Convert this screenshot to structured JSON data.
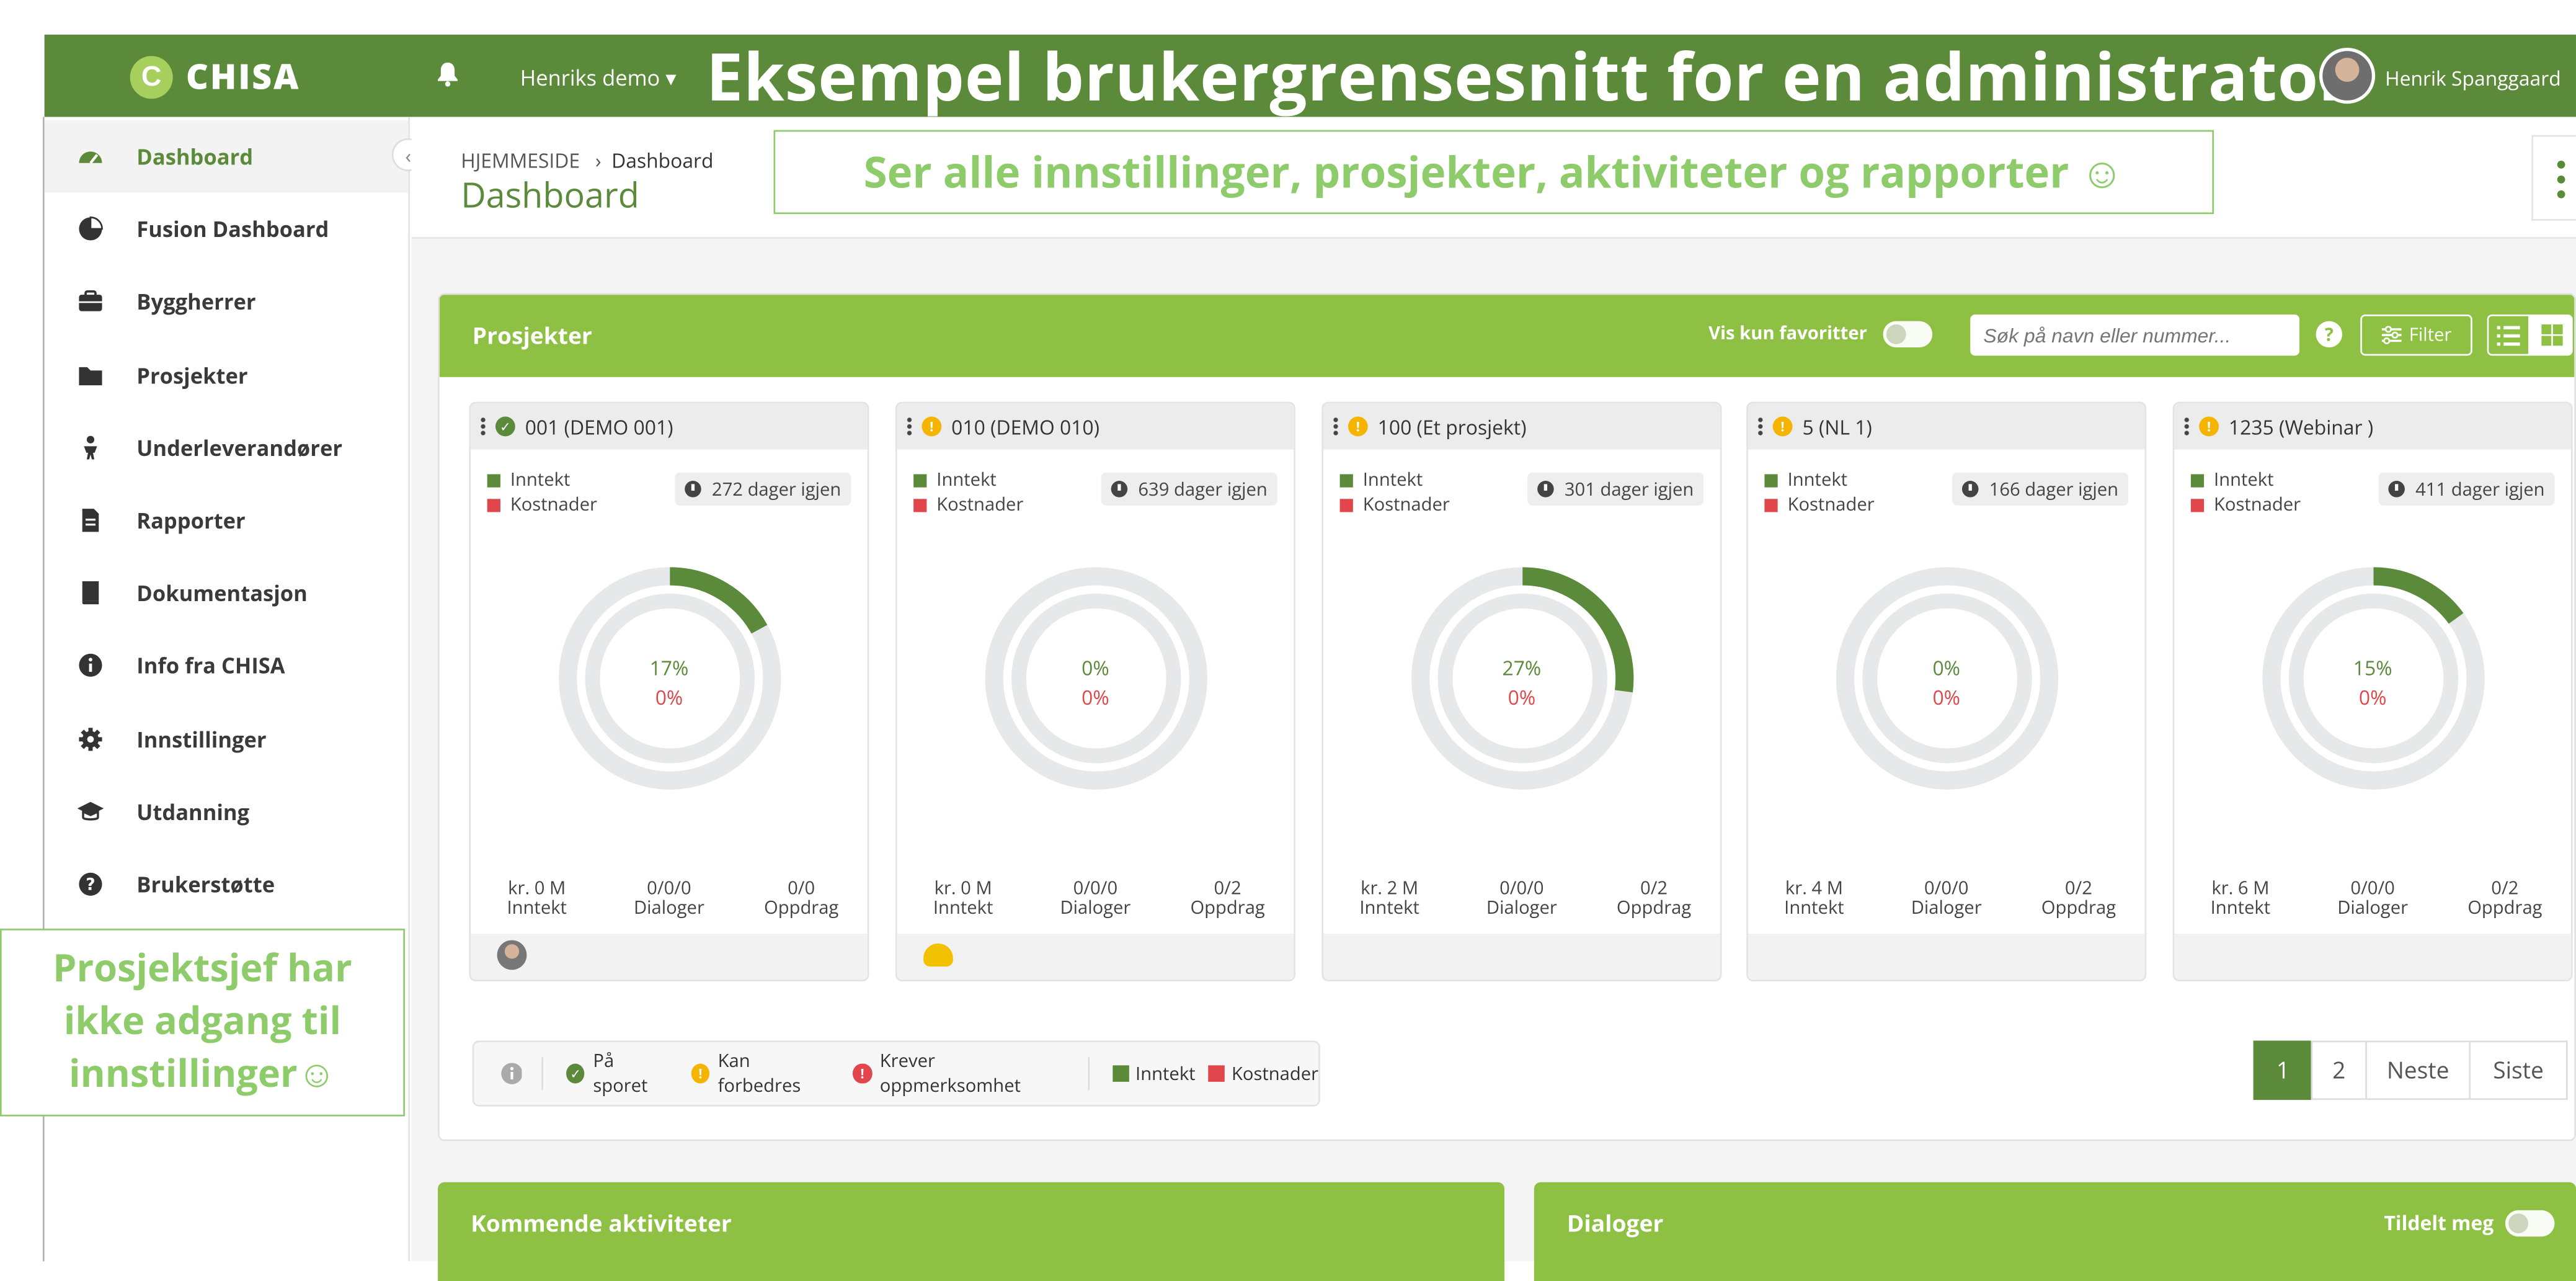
{
  "topbar": {
    "logo_letter": "C",
    "logo_text": "CHISA",
    "user_menu": "Henriks demo",
    "headline": "Eksempel brukergrensesnitt for en administrator",
    "username": "Henrik Spanggaard"
  },
  "sidebar": {
    "items": [
      {
        "label": "Dashboard",
        "icon": "dashboard-icon"
      },
      {
        "label": "Fusion Dashboard",
        "icon": "pie-chart-icon"
      },
      {
        "label": "Byggherrer",
        "icon": "briefcase-icon"
      },
      {
        "label": "Prosjekter",
        "icon": "folder-icon"
      },
      {
        "label": "Underleverandører",
        "icon": "worker-icon"
      },
      {
        "label": "Rapporter",
        "icon": "report-icon"
      },
      {
        "label": "Dokumentasjon",
        "icon": "book-icon"
      },
      {
        "label": "Info fra CHISA",
        "icon": "info-icon"
      },
      {
        "label": "Innstillinger",
        "icon": "gear-icon"
      },
      {
        "label": "Utdanning",
        "icon": "graduation-cap-icon"
      },
      {
        "label": "Brukerstøtte",
        "icon": "help-icon"
      }
    ],
    "note_line1": "Prosjektsjef har",
    "note_line2": "ikke adgang til",
    "note_line3": "innstillinger☺"
  },
  "page": {
    "breadcrumb_home": "HJEMMESIDE",
    "breadcrumb_current": "Dashboard",
    "title": "Dashboard",
    "banner": "Ser alle innstillinger, prosjekter, aktiviteter og rapporter ☺"
  },
  "projects": {
    "title": "Prosjekter",
    "favorites_label": "Vis kun favoritter",
    "search_placeholder": "Søk på navn eller nummer...",
    "help_label": "?",
    "filter_label": "Filter",
    "legend_income": "Inntekt",
    "legend_costs": "Kostnader",
    "cards": [
      {
        "title": "001 (DEMO 001)",
        "status": "on-track",
        "days": "272 dager igjen",
        "income_pct": "17%",
        "cost_pct": "0%",
        "income_fraction": 0.17,
        "amount": "kr. 0 M",
        "amount_label": "Inntekt",
        "dialogs": "0/0/0",
        "dialogs_label": "Dialoger",
        "tasks": "0/0",
        "tasks_label": "Oppdrag",
        "foot": "avatar"
      },
      {
        "title": "010 (DEMO 010)",
        "status": "improve",
        "days": "639 dager igjen",
        "income_pct": "0%",
        "cost_pct": "0%",
        "income_fraction": 0.0,
        "amount": "kr. 0 M",
        "amount_label": "Inntekt",
        "dialogs": "0/0/0",
        "dialogs_label": "Dialoger",
        "tasks": "0/2",
        "tasks_label": "Oppdrag",
        "foot": "hardhat"
      },
      {
        "title": "100 (Et prosjekt)",
        "status": "improve",
        "days": "301 dager igjen",
        "income_pct": "27%",
        "cost_pct": "0%",
        "income_fraction": 0.27,
        "amount": "kr. 2 M",
        "amount_label": "Inntekt",
        "dialogs": "0/0/0",
        "dialogs_label": "Dialoger",
        "tasks": "0/2",
        "tasks_label": "Oppdrag",
        "foot": "none"
      },
      {
        "title": "5 (NL 1)",
        "status": "improve",
        "days": "166 dager igjen",
        "income_pct": "0%",
        "cost_pct": "0%",
        "income_fraction": 0.0,
        "amount": "kr. 4 M",
        "amount_label": "Inntekt",
        "dialogs": "0/0/0",
        "dialogs_label": "Dialoger",
        "tasks": "0/2",
        "tasks_label": "Oppdrag",
        "foot": "none"
      },
      {
        "title": "1235 (Webinar )",
        "status": "improve",
        "days": "411 dager igjen",
        "income_pct": "15%",
        "cost_pct": "0%",
        "income_fraction": 0.15,
        "amount": "kr. 6 M",
        "amount_label": "Inntekt",
        "dialogs": "0/0/0",
        "dialogs_label": "Dialoger",
        "tasks": "0/2",
        "tasks_label": "Oppdrag",
        "foot": "none"
      }
    ],
    "status_legend": {
      "on_track": "På sporet",
      "improve": "Kan forbedres",
      "attention": "Krever oppmerksomhet",
      "income": "Inntekt",
      "costs": "Kostnader"
    },
    "pager": {
      "page1": "1",
      "page2": "2",
      "next": "Neste",
      "last": "Siste"
    }
  },
  "activities": {
    "title": "Kommende aktiviteter"
  },
  "dialogs": {
    "title": "Dialoger",
    "assigned_label": "Tildelt meg"
  },
  "colors": {
    "dark_green": "#5a8a3a",
    "light_green": "#8ec044",
    "red": "#e0464b",
    "amber": "#f5b400"
  }
}
